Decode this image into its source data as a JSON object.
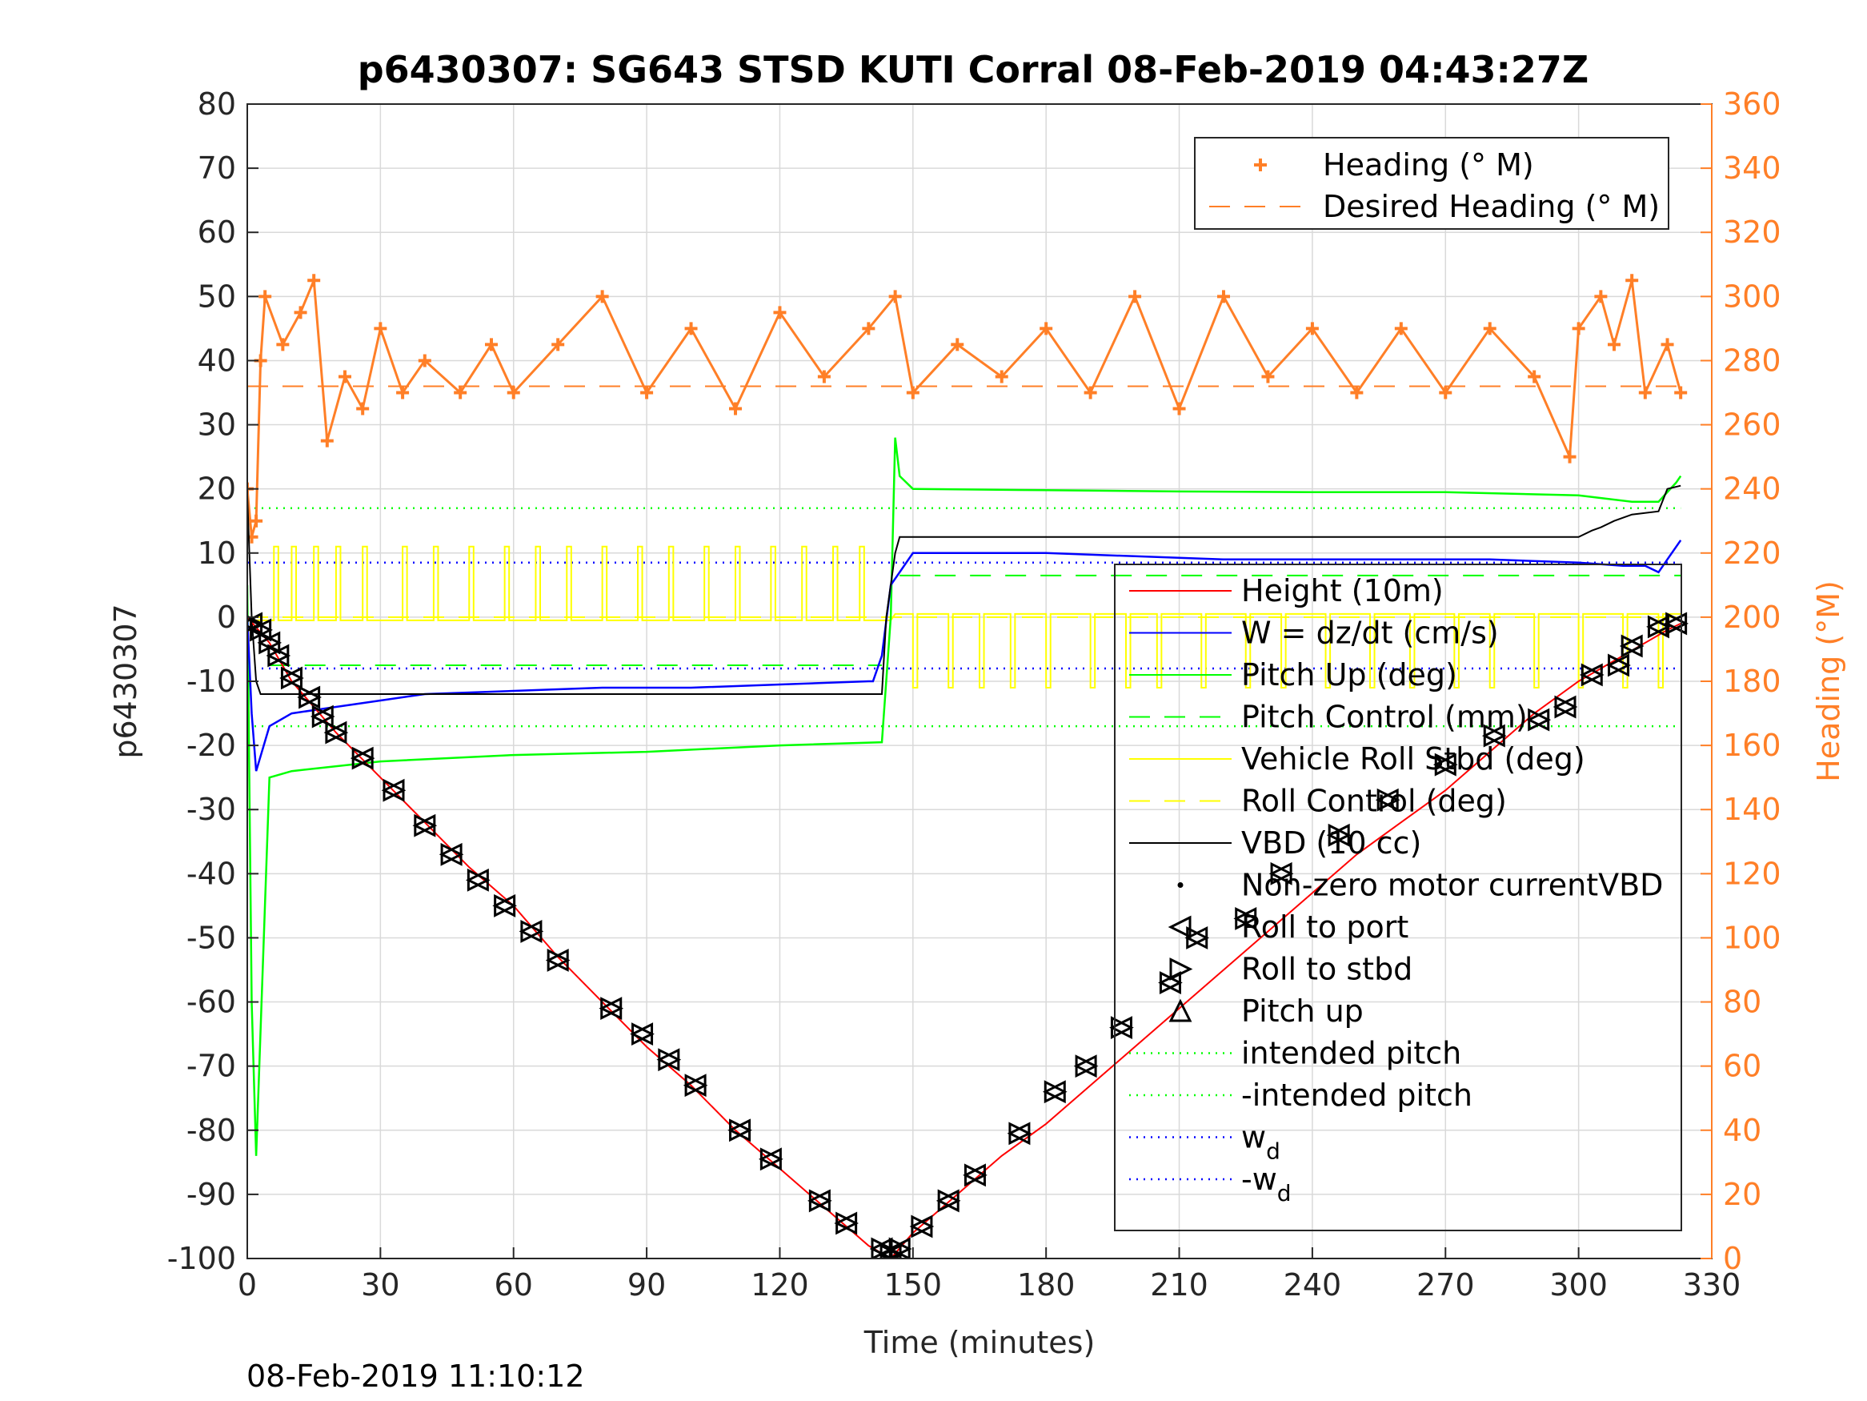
{
  "figure": {
    "footer_timestamp": "08-Feb-2019 11:10:12"
  },
  "colors": {
    "height": "#ff0000",
    "w": "#0000ff",
    "pitch": "#00ff00",
    "roll": "#ffff00",
    "vbd": "#000000",
    "heading": "#ff7f27",
    "grid": "#d9d9d9"
  },
  "chart_data": {
    "type": "line",
    "title": "p6430307: SG643 STSD KUTI Corral 08-Feb-2019 04:43:27Z",
    "xlabel": "Time (minutes)",
    "ylabel": "p6430307",
    "y2label": "Heading (°M)",
    "xlim": [
      0,
      330
    ],
    "ylim": [
      -100,
      80
    ],
    "y2lim": [
      0,
      360
    ],
    "xticks": [
      "0",
      "30",
      "60",
      "90",
      "120",
      "150",
      "180",
      "210",
      "240",
      "270",
      "300",
      "330"
    ],
    "yticks": [
      "-100",
      "-90",
      "-80",
      "-70",
      "-60",
      "-50",
      "-40",
      "-30",
      "-20",
      "-10",
      "0",
      "10",
      "20",
      "30",
      "40",
      "50",
      "60",
      "70",
      "80"
    ],
    "y2ticks": [
      "0",
      "20",
      "40",
      "60",
      "80",
      "100",
      "120",
      "140",
      "160",
      "180",
      "200",
      "220",
      "240",
      "260",
      "280",
      "300",
      "320",
      "340",
      "360"
    ],
    "grid": true,
    "legends": {
      "heading": {
        "placement": "top-right",
        "entries": [
          "Heading (° M)",
          "Desired Heading (° M)"
        ]
      },
      "main": {
        "placement": "lower-right",
        "entries": [
          {
            "label": "Height (10m)",
            "style": "line",
            "color": "#ff0000"
          },
          {
            "label": "W = dz/dt (cm/s)",
            "style": "line",
            "color": "#0000ff"
          },
          {
            "label": "Pitch Up (deg)",
            "style": "line",
            "color": "#00ff00"
          },
          {
            "label": "Pitch Control (mm)",
            "style": "dash",
            "color": "#00ff00"
          },
          {
            "label": "Vehicle Roll Stbd (deg)",
            "style": "line",
            "color": "#ffff00"
          },
          {
            "label": "Roll Control (deg)",
            "style": "dash",
            "color": "#ffff00"
          },
          {
            "label": "VBD (10 cc)",
            "style": "line",
            "color": "#000000"
          },
          {
            "label": "Non-zero motor currentVBD",
            "style": "dot",
            "color": "#000000"
          },
          {
            "label": "Roll to port",
            "style": "tri-left",
            "color": "#000000"
          },
          {
            "label": "Roll to stbd",
            "style": "tri-right",
            "color": "#000000"
          },
          {
            "label": "Pitch up",
            "style": "tri-up",
            "color": "#000000"
          },
          {
            "label": "intended pitch",
            "style": "dotted",
            "color": "#00ff00"
          },
          {
            "label": "-intended pitch",
            "style": "dotted",
            "color": "#00ff00"
          },
          {
            "label": "w",
            "sub": "d",
            "style": "dotted",
            "color": "#0000ff"
          },
          {
            "label": "-w",
            "sub": "d",
            "style": "dotted",
            "color": "#0000ff"
          }
        ]
      }
    },
    "series": [
      {
        "name": "Height (10m)",
        "axis": "left",
        "x": [
          0,
          5,
          10,
          20,
          30,
          40,
          50,
          60,
          70,
          80,
          90,
          100,
          110,
          120,
          130,
          140,
          145,
          150,
          160,
          170,
          180,
          190,
          200,
          210,
          220,
          230,
          240,
          250,
          260,
          270,
          280,
          290,
          300,
          310,
          320,
          323
        ],
        "y": [
          0,
          -4,
          -10,
          -18,
          -25,
          -32,
          -39,
          -45,
          -53,
          -60,
          -67,
          -73,
          -80,
          -86,
          -92,
          -98,
          -100,
          -96,
          -90,
          -84,
          -79,
          -73,
          -67,
          -61,
          -55,
          -49,
          -43,
          -37,
          -32,
          -27,
          -21,
          -15,
          -10,
          -6,
          -2,
          -1
        ]
      },
      {
        "name": "W = dz/dt (cm/s)",
        "axis": "left",
        "x": [
          0,
          1,
          2,
          5,
          10,
          20,
          30,
          40,
          60,
          80,
          100,
          120,
          140,
          141,
          143,
          145,
          150,
          160,
          180,
          200,
          220,
          240,
          260,
          280,
          300,
          310,
          315,
          318,
          320,
          323
        ],
        "y": [
          0,
          -15,
          -24,
          -17,
          -15,
          -14,
          -13,
          -12,
          -11.5,
          -11,
          -11,
          -10.5,
          -10,
          -10,
          -6,
          5,
          10,
          10,
          10,
          9.5,
          9,
          9,
          9,
          9,
          8.5,
          8,
          8,
          7,
          9,
          12
        ]
      },
      {
        "name": "Pitch Up (deg)",
        "axis": "left",
        "x": [
          0,
          1,
          2,
          5,
          10,
          30,
          60,
          90,
          120,
          143,
          145,
          146,
          147,
          150,
          180,
          210,
          240,
          270,
          300,
          312,
          318,
          322,
          323
        ],
        "y": [
          5,
          -60,
          -84,
          -25,
          -24,
          -22.5,
          -21.5,
          -21,
          -20,
          -19.5,
          0,
          28,
          22,
          20,
          19.8,
          19.6,
          19.5,
          19.5,
          19,
          18,
          18,
          21,
          22
        ]
      },
      {
        "name": "VBD (10 cc)",
        "axis": "left",
        "x": [
          0,
          1,
          2,
          3,
          143,
          144,
          146,
          147,
          160,
          200,
          240,
          273,
          298,
          300,
          303,
          305,
          308,
          310,
          312,
          318,
          320,
          323
        ],
        "y": [
          19,
          0,
          -10,
          -12,
          -12,
          0,
          10,
          12.5,
          12.5,
          12.5,
          12.5,
          12.5,
          12.5,
          12.5,
          13.5,
          14,
          15,
          15.5,
          16,
          16.5,
          20,
          20.5
        ]
      },
      {
        "name": "Heading (° M)",
        "axis": "right",
        "x": [
          0,
          1,
          2,
          3,
          4,
          8,
          12,
          15,
          18,
          22,
          26,
          30,
          35,
          40,
          48,
          55,
          60,
          70,
          80,
          90,
          100,
          110,
          120,
          130,
          140,
          146,
          150,
          160,
          170,
          180,
          190,
          200,
          210,
          220,
          230,
          240,
          250,
          260,
          270,
          280,
          290,
          298,
          300,
          305,
          308,
          312,
          315,
          320,
          323
        ],
        "y": [
          240,
          225,
          230,
          280,
          300,
          285,
          295,
          305,
          255,
          275,
          265,
          290,
          270,
          280,
          270,
          285,
          270,
          285,
          300,
          270,
          290,
          265,
          295,
          275,
          290,
          300,
          270,
          285,
          275,
          290,
          270,
          300,
          265,
          300,
          275,
          290,
          270,
          290,
          270,
          290,
          275,
          250,
          290,
          300,
          285,
          305,
          270,
          285,
          270
        ]
      },
      {
        "name": "Desired Heading (° M)",
        "axis": "right",
        "x": [
          0,
          323
        ],
        "y": [
          272,
          272
        ]
      }
    ],
    "reference_lines": [
      {
        "name": "intended pitch",
        "axis": "left",
        "y": 17,
        "color": "#00ff00"
      },
      {
        "name": "-intended pitch",
        "axis": "left",
        "y": -17,
        "color": "#00ff00"
      },
      {
        "name": "w_d",
        "axis": "left",
        "y": 8.5,
        "color": "#0000ff"
      },
      {
        "name": "-w_d",
        "axis": "left",
        "y": -8,
        "color": "#0000ff"
      }
    ],
    "pitch_control": [
      {
        "x0": 5,
        "x1": 143,
        "y": -7.5
      },
      {
        "x0": 147,
        "x1": 323,
        "y": 6.5
      }
    ],
    "roll_control": {
      "x0": 0,
      "x1": 323,
      "y": 0
    },
    "vehicle_roll": {
      "baseline_dive": -0.5,
      "pulses_dive_at_x": [
        6,
        10,
        15,
        20,
        26,
        35,
        42,
        50,
        58,
        65,
        72,
        80,
        88,
        95,
        103,
        110,
        118,
        125,
        132,
        138
      ],
      "pulse_dive_y": 11,
      "baseline_climb": 0.5,
      "pulses_climb_at_x": [
        150,
        158,
        165,
        172,
        180,
        190,
        198,
        205,
        215,
        225,
        233,
        243,
        253,
        262,
        272,
        280,
        290,
        300,
        310,
        318
      ],
      "pulse_climb_y": -11
    },
    "roll_markers": {
      "x": [
        1,
        3,
        5,
        7,
        10,
        14,
        17,
        20,
        26,
        33,
        40,
        46,
        52,
        58,
        64,
        70,
        82,
        89,
        95,
        101,
        111,
        118,
        129,
        135,
        143,
        145,
        147,
        152,
        158,
        164,
        174,
        182,
        189,
        197,
        208,
        214,
        225,
        233,
        246,
        257,
        270,
        281,
        291,
        297,
        303,
        309,
        312,
        318,
        322
      ],
      "y": [
        -1,
        -2,
        -4,
        -6,
        -9.5,
        -12.5,
        -15.5,
        -18,
        -22,
        -27,
        -32.5,
        -37,
        -41,
        -45,
        -49,
        -53.5,
        -61,
        -65,
        -69,
        -73,
        -80,
        -84.5,
        -91,
        -94.5,
        -98.5,
        -99.5,
        -98.5,
        -95,
        -91,
        -87,
        -80.5,
        -74,
        -70,
        -64,
        -57,
        -50,
        -47,
        -40,
        -34,
        -28.5,
        -23,
        -18.5,
        -16,
        -14,
        -9,
        -7.5,
        -4.5,
        -1.5,
        -1
      ]
    }
  }
}
